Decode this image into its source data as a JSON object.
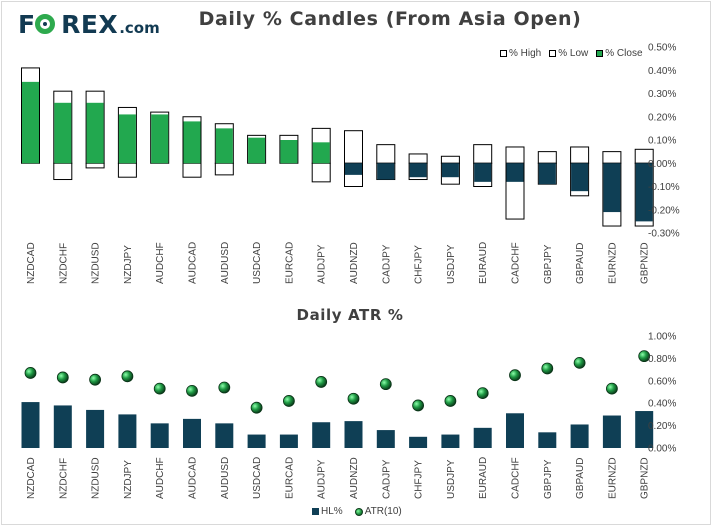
{
  "logo": {
    "text": "F REX",
    "dotcom": ".com"
  },
  "chart_data": [
    {
      "type": "bar",
      "title": "Daily % Candles (From Asia Open)",
      "categories": [
        "NZDCAD",
        "NZDCHF",
        "NZDUSD",
        "NZDJPY",
        "AUDCHF",
        "AUDCAD",
        "AUDUSD",
        "USDCAD",
        "EURCAD",
        "AUDJPY",
        "AUDNZD",
        "CADJPY",
        "CHFJPY",
        "USDJPY",
        "EURAUD",
        "CADCHF",
        "GBPJPY",
        "GBPAUD",
        "EURNZD",
        "GBPNZD"
      ],
      "series": [
        {
          "name": "% High",
          "values": [
            0.41,
            0.31,
            0.31,
            0.24,
            0.22,
            0.2,
            0.17,
            0.12,
            0.12,
            0.15,
            0.14,
            0.08,
            0.04,
            0.03,
            0.08,
            0.07,
            0.05,
            0.07,
            0.05,
            0.06
          ]
        },
        {
          "name": "% Low",
          "values": [
            0.0,
            -0.07,
            -0.02,
            -0.06,
            0.0,
            -0.06,
            -0.05,
            0.0,
            0.0,
            -0.08,
            -0.1,
            -0.07,
            -0.07,
            -0.09,
            -0.1,
            -0.24,
            -0.09,
            -0.14,
            -0.27,
            -0.27
          ]
        },
        {
          "name": "% Close",
          "values": [
            0.35,
            0.26,
            0.26,
            0.21,
            0.21,
            0.18,
            0.15,
            0.11,
            0.1,
            0.09,
            -0.05,
            -0.07,
            -0.06,
            -0.06,
            -0.08,
            -0.08,
            -0.09,
            -0.12,
            -0.21,
            -0.25
          ]
        }
      ],
      "yticks": [
        "0.50%",
        "0.40%",
        "0.30%",
        "0.20%",
        "0.10%",
        "0.00%",
        "-0.10%",
        "-0.20%",
        "-0.30%"
      ],
      "ylim": [
        -0.3,
        0.5
      ],
      "colors": {
        "bull": "#22a84f",
        "bear": "#0f3f55",
        "outline": "#000000"
      }
    },
    {
      "type": "bar",
      "title": "Daily ATR %",
      "categories": [
        "NZDCAD",
        "NZDCHF",
        "NZDUSD",
        "NZDJPY",
        "AUDCHF",
        "AUDCAD",
        "AUDUSD",
        "USDCAD",
        "EURCAD",
        "AUDJPY",
        "AUDNZD",
        "CADJPY",
        "CHFJPY",
        "USDJPY",
        "EURAUD",
        "CADCHF",
        "GBPJPY",
        "GBPAUD",
        "EURNZD",
        "GBPNZD"
      ],
      "series": [
        {
          "name": "HL%",
          "values": [
            0.41,
            0.38,
            0.34,
            0.3,
            0.22,
            0.26,
            0.22,
            0.12,
            0.12,
            0.23,
            0.24,
            0.16,
            0.1,
            0.12,
            0.18,
            0.31,
            0.14,
            0.21,
            0.29,
            0.33
          ]
        },
        {
          "name": "ATR(10)",
          "values": [
            0.67,
            0.63,
            0.61,
            0.64,
            0.53,
            0.51,
            0.54,
            0.36,
            0.42,
            0.59,
            0.44,
            0.57,
            0.38,
            0.42,
            0.49,
            0.65,
            0.71,
            0.76,
            0.53,
            0.82
          ]
        }
      ],
      "yticks": [
        "1.00%",
        "0.80%",
        "0.60%",
        "0.40%",
        "0.20%",
        "0.00%"
      ],
      "ylim": [
        0,
        1.0
      ],
      "colors": {
        "bar": "#0f3f55"
      }
    }
  ],
  "legend1": {
    "high": "% High",
    "low": "% Low",
    "close": "% Close"
  },
  "legend2": {
    "hl": "HL%",
    "atr": "ATR(10)"
  }
}
